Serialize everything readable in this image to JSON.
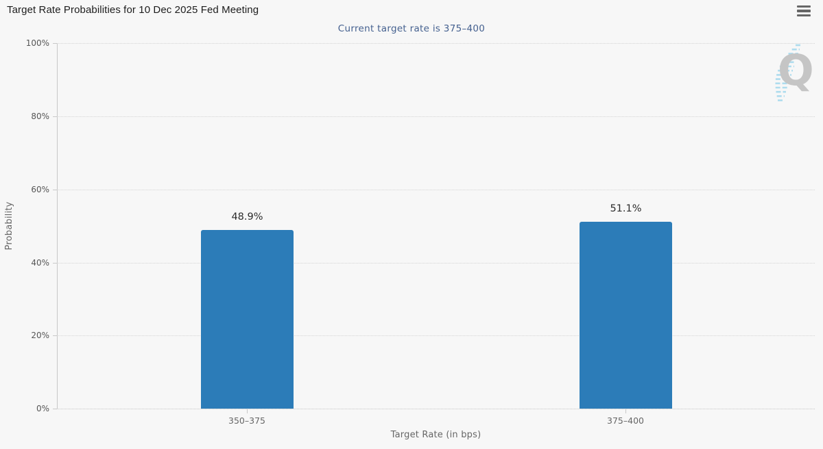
{
  "header": {
    "title": "Target Rate Probabilities for 10 Dec 2025 Fed Meeting"
  },
  "chart": {
    "watermark_letter": "Q"
  },
  "chart_data": {
    "type": "bar",
    "title": "Target Rate Probabilities for 10 Dec 2025 Fed Meeting",
    "subtitle": "Current target rate is 375–400",
    "categories": [
      "350–375",
      "375–400"
    ],
    "values": [
      48.9,
      51.1
    ],
    "data_labels": [
      "48.9%",
      "51.1%"
    ],
    "xlabel": "Target Rate (in bps)",
    "ylabel": "Probability",
    "ylim": [
      0,
      100
    ],
    "ytick_labels": [
      "100%",
      "80%",
      "60%",
      "40%",
      "20%",
      "0%"
    ],
    "ytick_values": [
      100,
      80,
      60,
      40,
      20,
      0
    ],
    "grid": "horizontal-dotted",
    "legend": "none",
    "colors": {
      "bar": "#2c7cb8",
      "subtitle_text": "#44608f",
      "background": "#f7f7f7",
      "watermark_blue": "#aedcee"
    }
  }
}
